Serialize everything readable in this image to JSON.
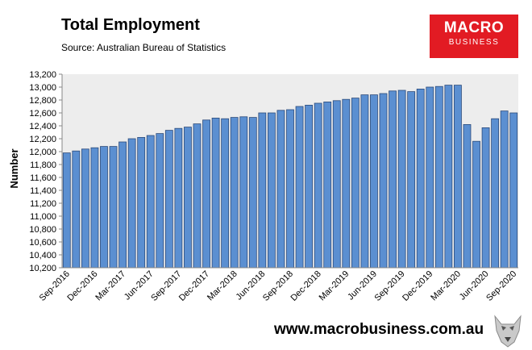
{
  "header": {
    "title": "Total Employment",
    "source": "Source: Australian Bureau of Statistics"
  },
  "logo": {
    "line1": "MACRO",
    "line2": "BUSINESS"
  },
  "footer": {
    "url": "www.macrobusiness.com.au",
    "mascot_icon": "wolf-mascot-icon"
  },
  "colors": {
    "bar_fill": "#5b8fd1",
    "bar_stroke": "#2b4a7a",
    "plot_bg": "#ededed",
    "brand_red": "#e21b23"
  },
  "chart_data": {
    "type": "bar",
    "ylabel": "Number",
    "xlabel": "",
    "ylim": [
      10200,
      13200
    ],
    "ytick_step": 200,
    "grid": false,
    "categories": [
      "Sep-2016",
      "Oct-2016",
      "Nov-2016",
      "Dec-2016",
      "Jan-2017",
      "Feb-2017",
      "Mar-2017",
      "Apr-2017",
      "May-2017",
      "Jun-2017",
      "Jul-2017",
      "Aug-2017",
      "Sep-2017",
      "Oct-2017",
      "Nov-2017",
      "Dec-2017",
      "Jan-2018",
      "Feb-2018",
      "Mar-2018",
      "Apr-2018",
      "May-2018",
      "Jun-2018",
      "Jul-2018",
      "Aug-2018",
      "Sep-2018",
      "Oct-2018",
      "Nov-2018",
      "Dec-2018",
      "Jan-2019",
      "Feb-2019",
      "Mar-2019",
      "Apr-2019",
      "May-2019",
      "Jun-2019",
      "Jul-2019",
      "Aug-2019",
      "Sep-2019",
      "Oct-2019",
      "Nov-2019",
      "Dec-2019",
      "Jan-2020",
      "Feb-2020",
      "Mar-2020",
      "Apr-2020",
      "May-2020",
      "Jun-2020",
      "Jul-2020",
      "Aug-2020",
      "Sep-2020"
    ],
    "tick_labels": [
      "Sep-2016",
      "Dec-2016",
      "Mar-2017",
      "Jun-2017",
      "Sep-2017",
      "Dec-2017",
      "Mar-2018",
      "Jun-2018",
      "Sep-2018",
      "Dec-2018",
      "Mar-2019",
      "Jun-2019",
      "Sep-2019",
      "Dec-2019",
      "Mar-2020",
      "Jun-2020",
      "Sep-2020"
    ],
    "values": [
      11980,
      12010,
      12040,
      12060,
      12080,
      12080,
      12150,
      12200,
      12220,
      12250,
      12280,
      12330,
      12360,
      12380,
      12430,
      12490,
      12520,
      12510,
      12530,
      12540,
      12530,
      12600,
      12600,
      12640,
      12650,
      12700,
      12720,
      12750,
      12770,
      12790,
      12810,
      12830,
      12880,
      12880,
      12900,
      12940,
      12950,
      12930,
      12970,
      13000,
      13010,
      13030,
      13030,
      12420,
      12160,
      12370,
      12510,
      12630,
      12600
    ]
  }
}
